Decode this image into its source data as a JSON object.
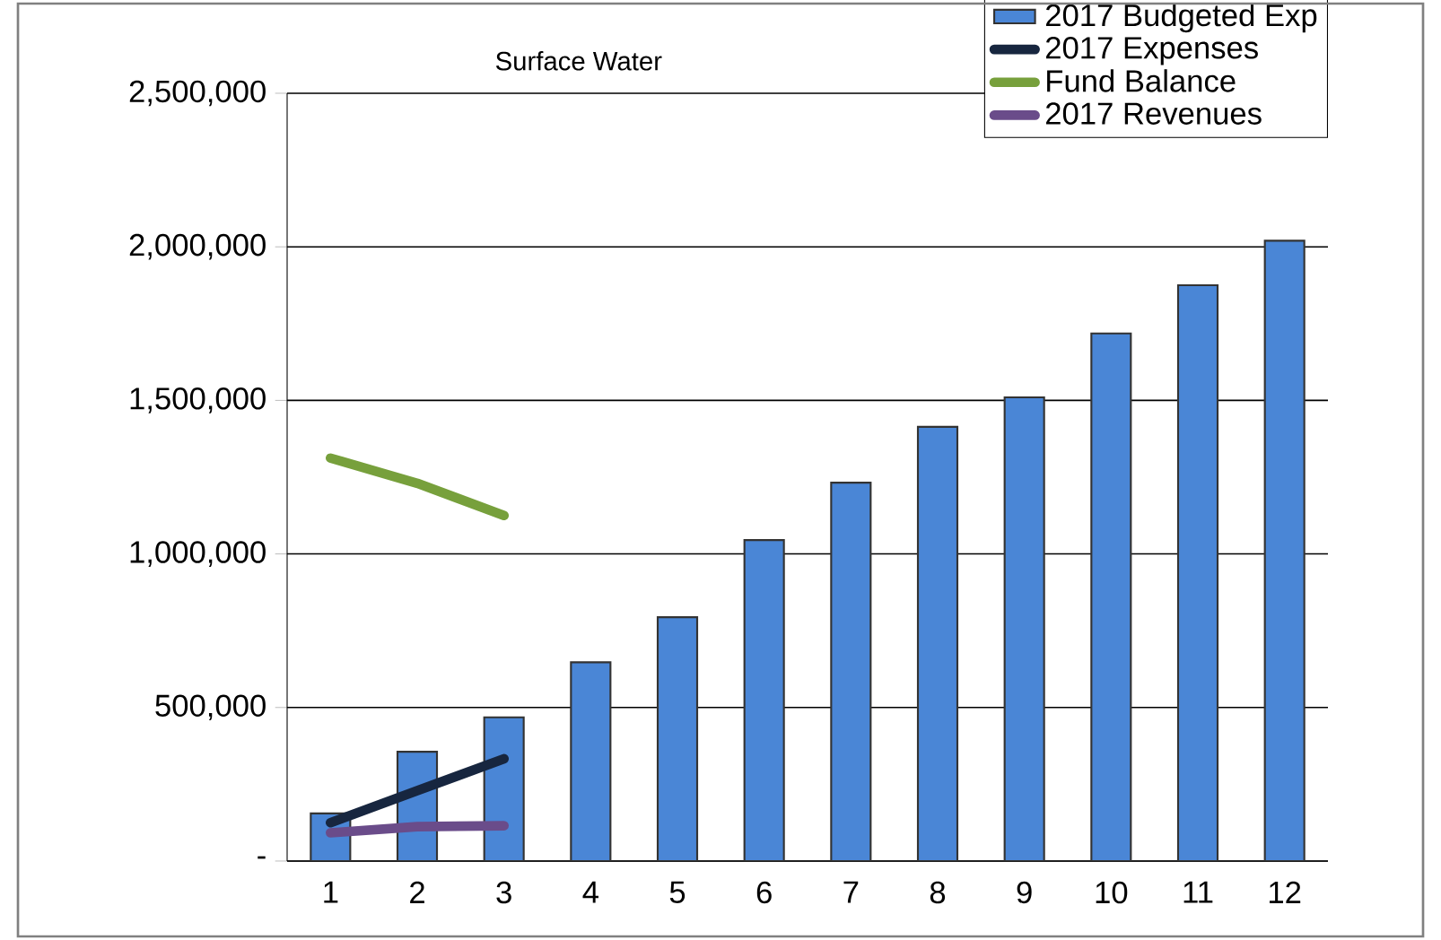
{
  "chart_data": {
    "type": "bar",
    "title": "Surface Water",
    "categories": [
      "1",
      "2",
      "3",
      "4",
      "5",
      "6",
      "7",
      "8",
      "9",
      "10",
      "11",
      "12"
    ],
    "series": [
      {
        "name": "2017 Budgeted Exp",
        "color": "#4a86d6",
        "values": [
          155000,
          356000,
          468000,
          647000,
          794000,
          1045000,
          1232000,
          1414000,
          1510000,
          1718000,
          1875000,
          2020000
        ]
      },
      {
        "name": "2017 Expenses",
        "type": "line",
        "color": "#17263f",
        "values": [
          125000,
          229000,
          333000,
          null,
          null,
          null,
          null,
          null,
          null,
          null,
          null,
          null
        ]
      },
      {
        "name": "Fund Balance",
        "type": "line",
        "color": "#77a03c",
        "values": [
          1312000,
          1230000,
          1125000,
          null,
          null,
          null,
          null,
          null,
          null,
          null,
          null,
          null
        ]
      },
      {
        "name": "2017 Revenues",
        "type": "line",
        "color": "#6a4c8a",
        "values": [
          92000,
          112000,
          115000,
          null,
          null,
          null,
          null,
          null,
          null,
          null,
          null,
          null
        ]
      }
    ],
    "ylim": [
      0,
      2500000
    ],
    "yticks": [
      {
        "value": 0,
        "label": "-"
      },
      {
        "value": 500000,
        "label": "500,000"
      },
      {
        "value": 1000000,
        "label": "1,000,000"
      },
      {
        "value": 1500000,
        "label": "1,500,000"
      },
      {
        "value": 2000000,
        "label": "2,000,000"
      },
      {
        "value": 2500000,
        "label": "2,500,000"
      }
    ],
    "grid": "y",
    "legend": "top right",
    "marker": "none",
    "line_style": "solid"
  }
}
